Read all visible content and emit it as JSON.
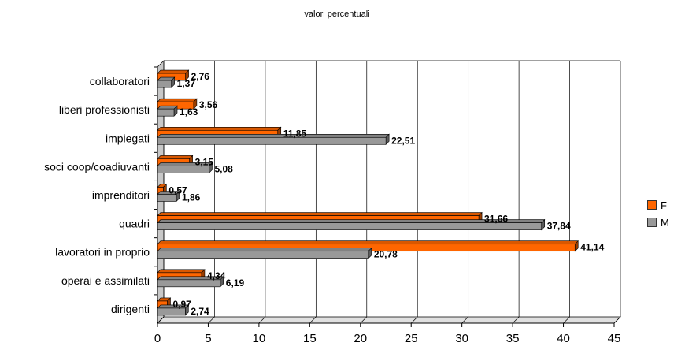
{
  "chart_data": {
    "type": "bar",
    "orientation": "horizontal",
    "title": "valori percentuali",
    "categories": [
      "collaboratori",
      "liberi professionisti",
      "impiegati",
      "soci coop/coadiuvanti",
      "imprenditori",
      "quadri",
      "lavoratori in proprio",
      "operai e assimilati",
      "dirigenti"
    ],
    "series": [
      {
        "name": "F",
        "color": "#FF6600",
        "values": [
          2.76,
          3.56,
          11.85,
          3.15,
          0.57,
          31.66,
          41.14,
          4.34,
          0.97
        ],
        "labels": [
          "2,76",
          "3,56",
          "11,85",
          "3,15",
          "0,57",
          "31,66",
          "41,14",
          "4,34",
          "0,97"
        ]
      },
      {
        "name": "M",
        "color": "#999999",
        "values": [
          1.37,
          1.63,
          22.51,
          5.08,
          1.86,
          37.84,
          20.78,
          6.19,
          2.74
        ],
        "labels": [
          "1,37",
          "1,63",
          "22,51",
          "5,08",
          "1,86",
          "37,84",
          "20,78",
          "6,19",
          "2,74"
        ]
      }
    ],
    "xlim": [
      0,
      45
    ],
    "xticks": [
      "0",
      "5",
      "10",
      "15",
      "20",
      "25",
      "30",
      "35",
      "40",
      "45"
    ],
    "grid": true,
    "legend_position": "right"
  }
}
